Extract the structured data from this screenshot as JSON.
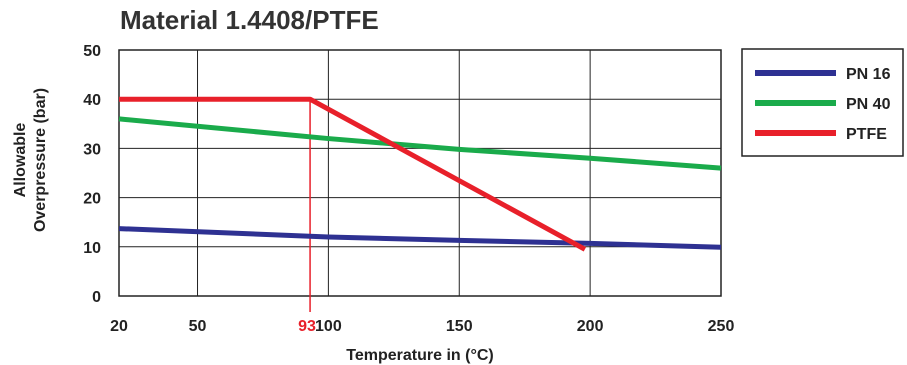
{
  "chart_data": {
    "type": "line",
    "title": "Material 1.4408/PTFE",
    "xlabel": "Temperature in (°C)",
    "ylabel_lines": [
      "Allowable",
      "Overpressure (bar)"
    ],
    "xlim": [
      20,
      250
    ],
    "ylim": [
      0,
      50
    ],
    "x_ticks": [
      "20",
      "50",
      "100",
      "150",
      "200",
      "250"
    ],
    "x_tick_values": [
      20,
      50,
      100,
      150,
      200,
      250
    ],
    "y_ticks": [
      "0",
      "10",
      "20",
      "30",
      "40",
      "50"
    ],
    "y_tick_values": [
      0,
      10,
      20,
      30,
      40,
      50
    ],
    "grid": true,
    "legend_position": "right",
    "marker": {
      "x": 93,
      "label": "93",
      "color": "#e8202a"
    },
    "series": [
      {
        "name": "PN 16",
        "color": "#2e3192",
        "x": [
          20,
          100,
          150,
          200,
          250
        ],
        "y": [
          13.7,
          12,
          11.3,
          10.7,
          9.9
        ]
      },
      {
        "name": "PN 40",
        "color": "#1aab4b",
        "x": [
          20,
          100,
          150,
          200,
          250
        ],
        "y": [
          36,
          32,
          29.8,
          28,
          26
        ]
      },
      {
        "name": "PTFE",
        "color": "#e8202a",
        "x": [
          20,
          93,
          198
        ],
        "y": [
          40,
          40,
          9.5
        ]
      }
    ]
  }
}
